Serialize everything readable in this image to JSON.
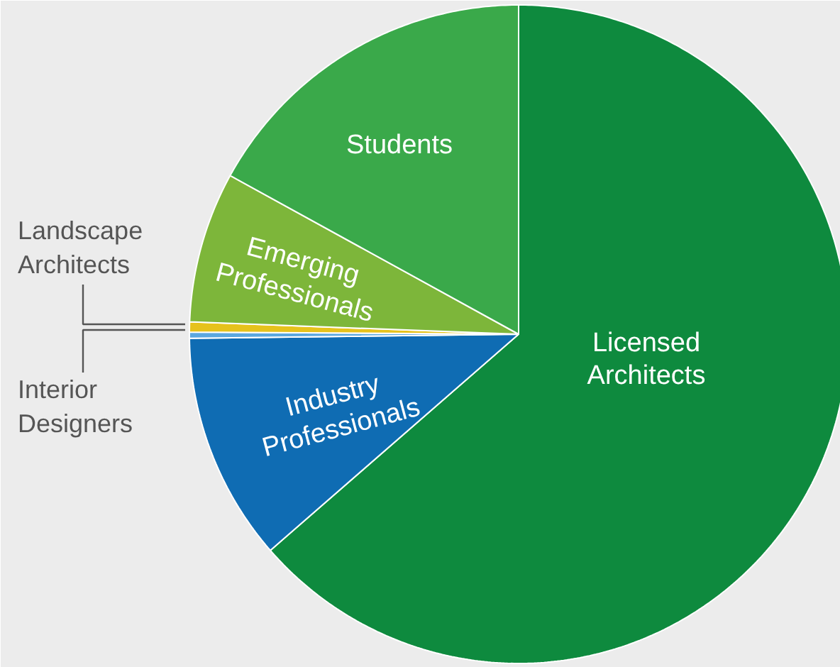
{
  "chart_data": {
    "type": "pie",
    "categories": [
      "Licensed Architects",
      "Industry Professionals",
      "Interior Designers",
      "Landscape Architects",
      "Emerging Professionals",
      "Students"
    ],
    "values": [
      63.6,
      11.2,
      0.3,
      0.5,
      7.4,
      17.0
    ],
    "colors": [
      "#0e8a3e",
      "#0f6cb3",
      "#5aa7e0",
      "#e6c21c",
      "#7db63a",
      "#3aa94a"
    ]
  }
}
